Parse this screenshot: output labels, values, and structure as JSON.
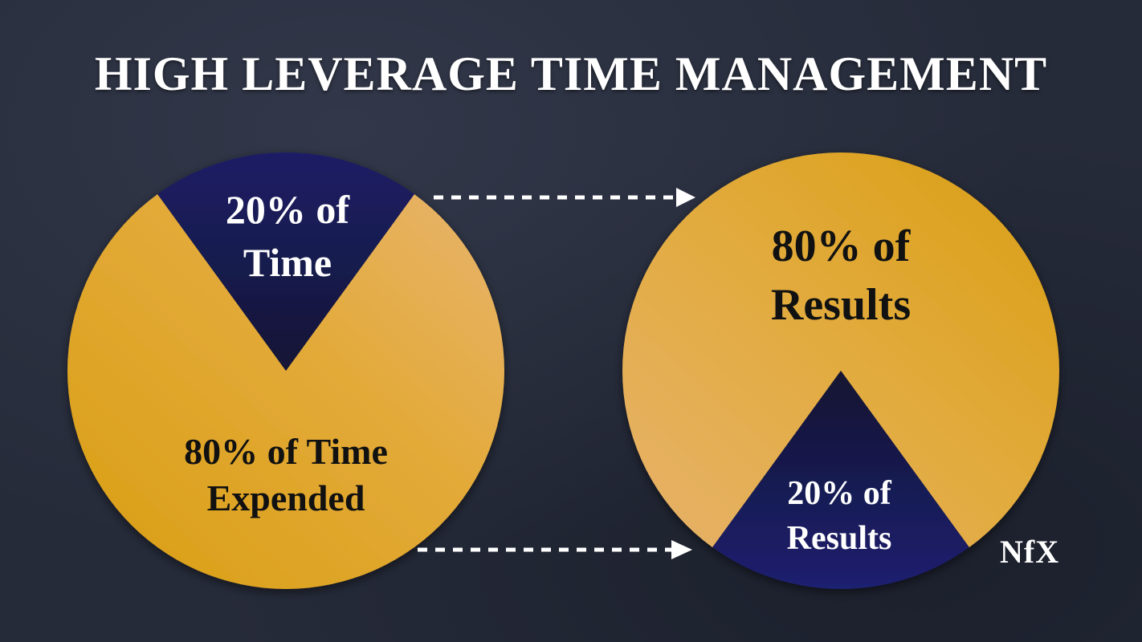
{
  "title": "HIGH LEVERAGE TIME MANAGEMENT",
  "logo": "NfX",
  "colors": {
    "gold": "#e1a92f",
    "gold_light": "#e6b066",
    "navy": "#1b1e5c",
    "background": "#262b3a",
    "text_light": "#ffffff",
    "text_dark": "#111111"
  },
  "chart_data": [
    {
      "type": "pie",
      "slices": [
        {
          "name": "20% of Time",
          "value": 20,
          "color": "#1b1e5c"
        },
        {
          "name": "80% of Time Expended",
          "value": 80,
          "color": "#e1a92f"
        }
      ]
    },
    {
      "type": "pie",
      "slices": [
        {
          "name": "80% of Results",
          "value": 80,
          "color": "#e1a92f"
        },
        {
          "name": "20% of Results",
          "value": 20,
          "color": "#1b1e5c"
        }
      ]
    }
  ],
  "labels": {
    "left_small": [
      "20% of",
      "Time"
    ],
    "left_large": [
      "80% of Time",
      "Expended"
    ],
    "right_large": [
      "80% of",
      "Results"
    ],
    "right_small": [
      "20% of",
      "Results"
    ]
  }
}
